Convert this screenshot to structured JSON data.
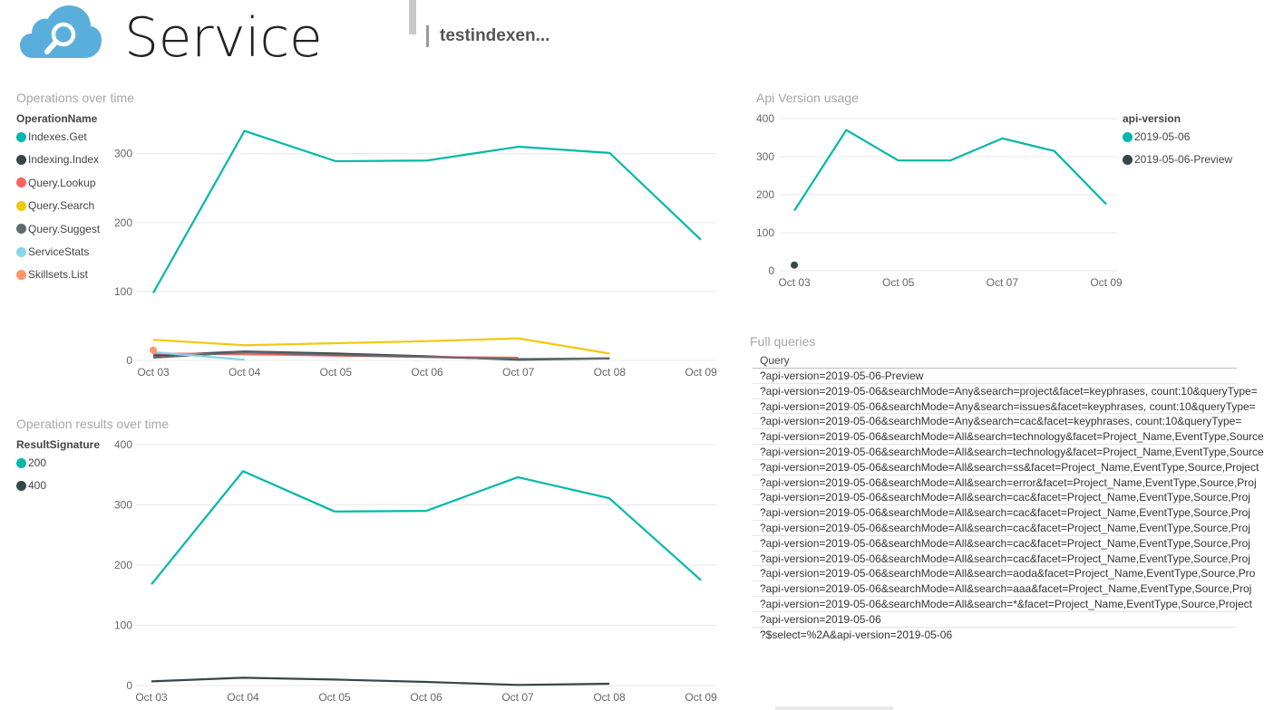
{
  "header": {
    "title": "Service",
    "index_name": "testindexen...",
    "logo_icon": "cloud-search-icon"
  },
  "colors": {
    "teal": "#01b8aa",
    "dark": "#374649",
    "red": "#fd625e",
    "yellow": "#f2c80f",
    "gray": "#5f6b6d",
    "lightblue": "#8ad4eb",
    "orange": "#fe9666",
    "logo": "#5aaedc"
  },
  "operations_chart": {
    "section_title": "Operations over time",
    "legend_title": "OperationName",
    "legend": [
      {
        "label": "Indexes.Get",
        "color": "#01b8aa"
      },
      {
        "label": "Indexing.Index",
        "color": "#374649"
      },
      {
        "label": "Query.Lookup",
        "color": "#fd625e"
      },
      {
        "label": "Query.Search",
        "color": "#f2c80f"
      },
      {
        "label": "Query.Suggest",
        "color": "#5f6b6d"
      },
      {
        "label": "ServiceStats",
        "color": "#8ad4eb"
      },
      {
        "label": "Skillsets.List",
        "color": "#fe9666"
      }
    ]
  },
  "results_chart": {
    "section_title": "Operation results over time",
    "legend_title": "ResultSignature",
    "legend": [
      {
        "label": "200",
        "color": "#01b8aa"
      },
      {
        "label": "400",
        "color": "#374649"
      }
    ]
  },
  "api_chart": {
    "section_title": "Api Version usage",
    "legend_title": "api-version",
    "legend": [
      {
        "label": "2019-05-06",
        "color": "#01b8aa"
      },
      {
        "label": "2019-05-06-Preview",
        "color": "#374649"
      }
    ]
  },
  "queries_table": {
    "section_title": "Full queries",
    "column_header": "Query",
    "rows": [
      "?api-version=2019-05-06-Preview",
      "?api-version=2019-05-06&searchMode=Any&search=project&facet=keyphrases, count:10&queryType=",
      "?api-version=2019-05-06&searchMode=Any&search=issues&facet=keyphrases, count:10&queryType=",
      "?api-version=2019-05-06&searchMode=Any&search=cac&facet=keyphrases, count:10&queryType=",
      "?api-version=2019-05-06&searchMode=All&search=technology&facet=Project_Name,EventType,Source",
      "?api-version=2019-05-06&searchMode=All&search=technology&facet=Project_Name,EventType,Source",
      "?api-version=2019-05-06&searchMode=All&search=ss&facet=Project_Name,EventType,Source,Project",
      "?api-version=2019-05-06&searchMode=All&search=error&facet=Project_Name,EventType,Source,Proj",
      "?api-version=2019-05-06&searchMode=All&search=cac&facet=Project_Name,EventType,Source,Proj",
      "?api-version=2019-05-06&searchMode=All&search=cac&facet=Project_Name,EventType,Source,Proj",
      "?api-version=2019-05-06&searchMode=All&search=cac&facet=Project_Name,EventType,Source,Proj",
      "?api-version=2019-05-06&searchMode=All&search=cac&facet=Project_Name,EventType,Source,Proj",
      "?api-version=2019-05-06&searchMode=All&search=cac&facet=Project_Name,EventType,Source,Proj",
      "?api-version=2019-05-06&searchMode=All&search=aoda&facet=Project_Name,EventType,Source,Pro",
      "?api-version=2019-05-06&searchMode=All&search=aaa&facet=Project_Name,EventType,Source,Proj",
      "?api-version=2019-05-06&searchMode=All&search=*&facet=Project_Name,EventType,Source,Project",
      "?api-version=2019-05-06",
      "?$select=%2A&api-version=2019-05-06"
    ]
  },
  "chart_data": [
    {
      "type": "line",
      "title": "Operations over time",
      "legend_title": "OperationName",
      "legend_position": "left",
      "x": [
        "Oct 03",
        "Oct 04",
        "Oct 05",
        "Oct 06",
        "Oct 07",
        "Oct 08",
        "Oct 09"
      ],
      "yticks": [
        0,
        100,
        200,
        300
      ],
      "ylim": [
        0,
        335
      ],
      "grid": true,
      "series": [
        {
          "name": "Indexes.Get",
          "color": "#01b8aa",
          "values": [
            98,
            333,
            289,
            290,
            310,
            301,
            175
          ]
        },
        {
          "name": "Indexing.Index",
          "color": "#374649",
          "values": [
            7,
            13,
            10,
            6,
            1,
            3,
            null
          ]
        },
        {
          "name": "Query.Lookup",
          "color": "#fd625e",
          "values": [
            10,
            9,
            7,
            5,
            4,
            null,
            null
          ]
        },
        {
          "name": "Query.Search",
          "color": "#f2c80f",
          "values": [
            30,
            22,
            25,
            28,
            32,
            10,
            null
          ]
        },
        {
          "name": "Query.Suggest",
          "color": "#5f6b6d",
          "values": [
            4,
            12,
            8,
            5,
            2,
            3,
            null
          ]
        },
        {
          "name": "ServiceStats",
          "color": "#8ad4eb",
          "values": [
            12,
            1,
            null,
            null,
            null,
            null,
            null
          ]
        },
        {
          "name": "Skillsets.List",
          "color": "#fe9666",
          "values": [
            15,
            null,
            null,
            null,
            null,
            null,
            null
          ]
        }
      ]
    },
    {
      "type": "line",
      "title": "Operation results over time",
      "legend_title": "ResultSignature",
      "legend_position": "left",
      "x": [
        "Oct 03",
        "Oct 04",
        "Oct 05",
        "Oct 06",
        "Oct 07",
        "Oct 08",
        "Oct 09"
      ],
      "yticks": [
        0,
        100,
        200,
        300,
        400
      ],
      "ylim": [
        0,
        400
      ],
      "grid": true,
      "series": [
        {
          "name": "200",
          "color": "#01b8aa",
          "values": [
            168,
            356,
            289,
            290,
            346,
            311,
            175
          ]
        },
        {
          "name": "400",
          "color": "#374649",
          "values": [
            7,
            13,
            10,
            6,
            1,
            3,
            null
          ]
        }
      ]
    },
    {
      "type": "line",
      "title": "Api Version usage",
      "legend_title": "api-version",
      "legend_position": "right",
      "x": [
        "Oct 03",
        "Oct 04",
        "Oct 05",
        "Oct 06",
        "Oct 07",
        "Oct 08",
        "Oct 09"
      ],
      "xticks": [
        "Oct 03",
        "Oct 05",
        "Oct 07",
        "Oct 09"
      ],
      "yticks": [
        0,
        100,
        200,
        300,
        400
      ],
      "ylim": [
        0,
        400
      ],
      "grid": true,
      "series": [
        {
          "name": "2019-05-06",
          "color": "#01b8aa",
          "values": [
            158,
            370,
            290,
            290,
            348,
            315,
            175
          ]
        },
        {
          "name": "2019-05-06-Preview",
          "color": "#374649",
          "values": [
            15,
            null,
            null,
            null,
            null,
            null,
            null
          ]
        }
      ]
    }
  ]
}
